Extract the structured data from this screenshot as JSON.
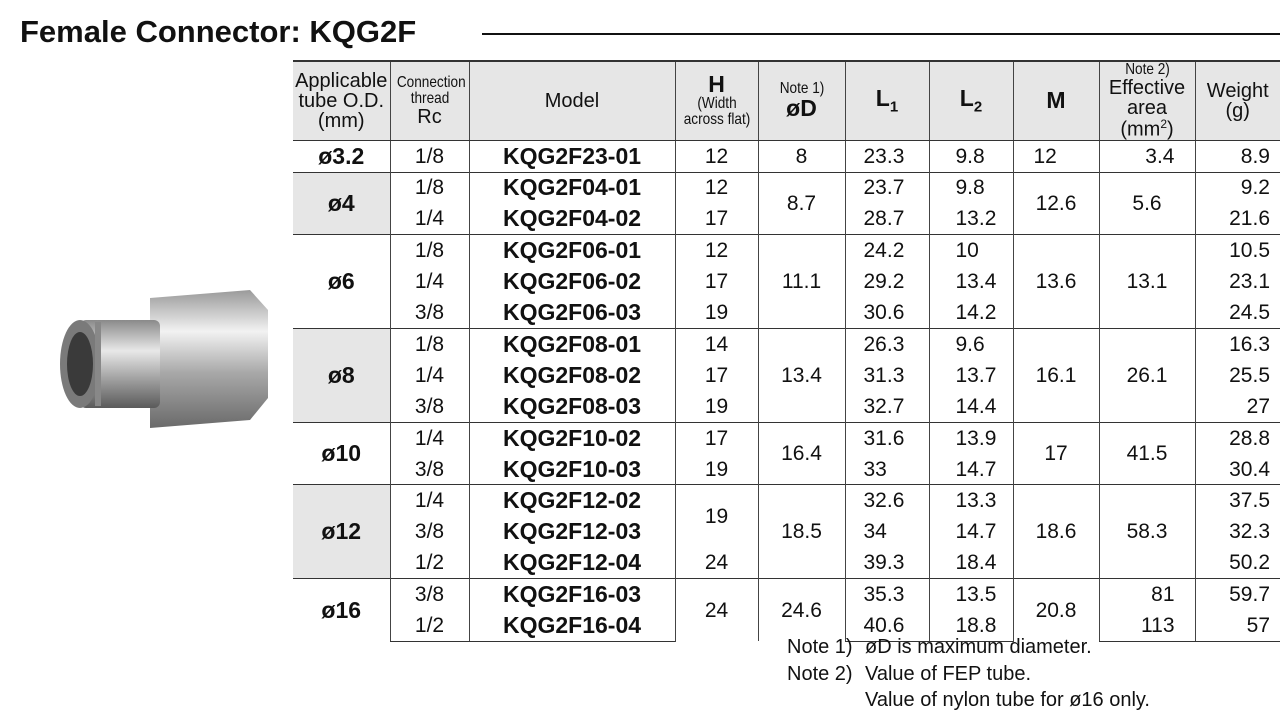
{
  "title": "Female Connector: KQG2F",
  "table": {
    "header": [
      {
        "lines": [
          "Applicable",
          "tube O.D.",
          "(mm)"
        ]
      },
      {
        "lines": [
          "Connection",
          "thread",
          "Rc"
        ]
      },
      {
        "lines": [
          "Model"
        ]
      },
      {
        "lines": [
          "H",
          "(Width",
          "across flat)"
        ]
      },
      {
        "lines": [
          "Note 1)",
          "øD"
        ]
      },
      {
        "main": "L",
        "sub": "1"
      },
      {
        "main": "L",
        "sub": "2"
      },
      {
        "lines": [
          "M"
        ]
      },
      {
        "lines": [
          "Note 2)",
          "Effective",
          "area (mm"
        ],
        "sup": "2",
        "after": ")"
      },
      {
        "lines": [
          "Weight",
          "(g)"
        ]
      }
    ],
    "rows": [
      [
        "ø3.2",
        "1/8",
        "KQG2F23-01",
        "12",
        "8",
        "23.3",
        "9.8",
        "12",
        "3.4",
        "8.9"
      ],
      [
        "ø4",
        "1/8",
        "KQG2F04-01",
        "12",
        "8.7",
        "23.7",
        "9.8",
        "12.6",
        "5.6",
        "9.2"
      ],
      [
        "1/4",
        "KQG2F04-02",
        "17",
        "28.7",
        "13.2",
        "21.6"
      ],
      [
        "ø6",
        "1/8",
        "KQG2F06-01",
        "12",
        "11.1",
        "24.2",
        "10",
        "13.6",
        "13.1",
        "10.5"
      ],
      [
        "1/4",
        "KQG2F06-02",
        "17",
        "29.2",
        "13.4",
        "23.1"
      ],
      [
        "3/8",
        "KQG2F06-03",
        "19",
        "30.6",
        "14.2",
        "24.5"
      ],
      [
        "ø8",
        "1/8",
        "KQG2F08-01",
        "14",
        "13.4",
        "26.3",
        "9.6",
        "16.1",
        "26.1",
        "16.3"
      ],
      [
        "1/4",
        "KQG2F08-02",
        "17",
        "31.3",
        "13.7",
        "25.5"
      ],
      [
        "3/8",
        "KQG2F08-03",
        "19",
        "32.7",
        "14.4",
        "27"
      ],
      [
        "ø10",
        "1/4",
        "KQG2F10-02",
        "17",
        "16.4",
        "31.6",
        "13.9",
        "17",
        "41.5",
        "28.8"
      ],
      [
        "3/8",
        "KQG2F10-03",
        "19",
        "33",
        "14.7",
        "30.4"
      ],
      [
        "ø12",
        "1/4",
        "KQG2F12-02",
        "19",
        "18.5",
        "32.6",
        "13.3",
        "18.6",
        "58.3",
        "37.5"
      ],
      [
        "3/8",
        "KQG2F12-03",
        "34",
        "14.7",
        "32.3"
      ],
      [
        "1/2",
        "KQG2F12-04",
        "24",
        "39.3",
        "18.4",
        "50.2"
      ],
      [
        "ø16",
        "3/8",
        "KQG2F16-03",
        "24",
        "24.6",
        "35.3",
        "13.5",
        "20.8",
        "81",
        "59.7"
      ],
      [
        "1/2",
        "KQG2F16-04",
        "40.6",
        "18.8",
        "113",
        "57"
      ]
    ]
  },
  "notes": [
    {
      "label": "Note 1)",
      "text": "øD is maximum diameter."
    },
    {
      "label": "Note 2)",
      "text": "Value of FEP tube."
    },
    {
      "text": "Value of nylon tube for ø16 only."
    }
  ]
}
